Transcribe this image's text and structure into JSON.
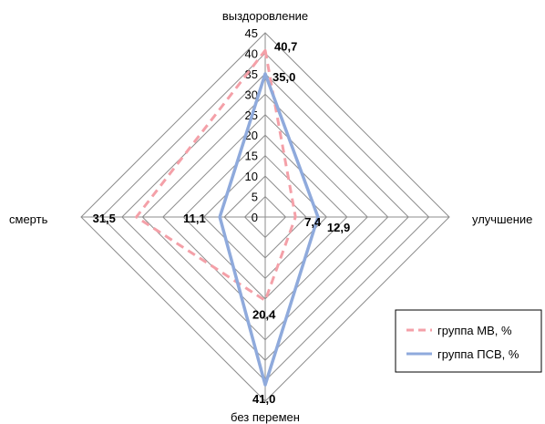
{
  "chart_data": {
    "type": "radar",
    "categories": [
      "выздоровление",
      "улучшение",
      "без перемен",
      "смерть"
    ],
    "series": [
      {
        "name": "группа МВ, %",
        "values": [
          40.7,
          7.4,
          20.4,
          31.5
        ],
        "labels": [
          "40,7",
          "7,4",
          "20,4",
          "31,5"
        ],
        "color": "#f4a0a8",
        "style": "dashed"
      },
      {
        "name": "группа ПСВ, %",
        "values": [
          35.0,
          12.9,
          41.0,
          11.1
        ],
        "labels": [
          "35,0",
          "12,9",
          "41,0",
          "11,1"
        ],
        "color": "#8faadc",
        "style": "solid"
      }
    ],
    "rticks": [
      "0",
      "5",
      "10",
      "15",
      "20",
      "25",
      "30",
      "35",
      "40",
      "45"
    ],
    "rlim": [
      0,
      45
    ],
    "grid": true,
    "legend": "bottom-right"
  }
}
